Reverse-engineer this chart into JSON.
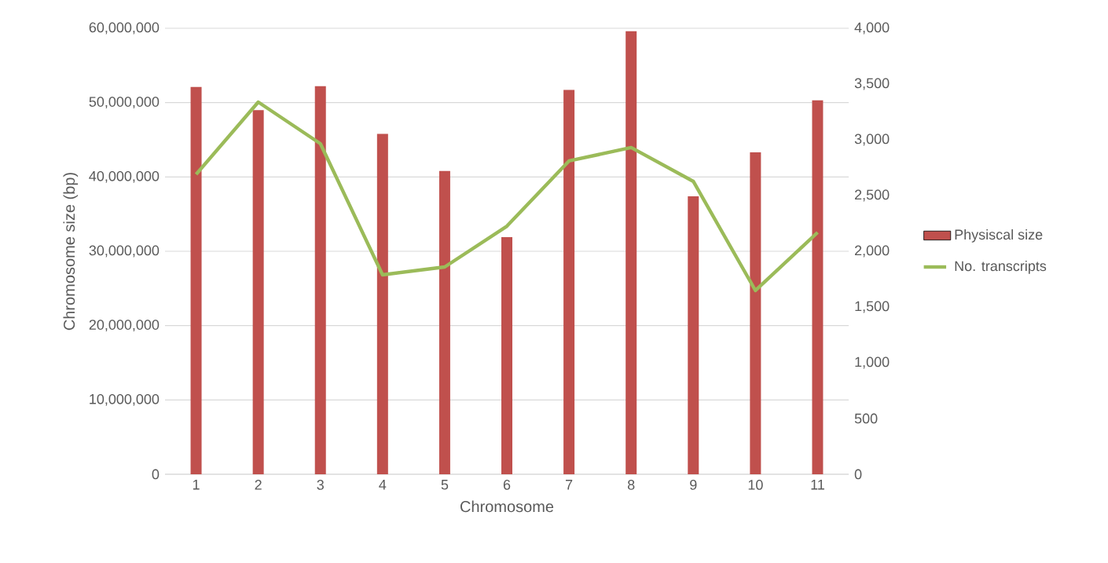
{
  "chart_data": {
    "type": "bar",
    "xlabel": "Chromosome",
    "ylabel": "Chromosome size (bp)",
    "categories": [
      "1",
      "2",
      "3",
      "4",
      "5",
      "6",
      "7",
      "8",
      "9",
      "10",
      "11"
    ],
    "series": [
      {
        "name": "Physiscal size",
        "color": "#c0504d",
        "values": [
          52100000,
          49000000,
          52200000,
          45800000,
          40800000,
          31900000,
          51700000,
          59600000,
          37400000,
          43300000,
          50300000
        ]
      },
      {
        "name": "No. transcripts",
        "type": "line",
        "axis": "y2",
        "color": "#9bbb59",
        "values": [
          2690,
          3338,
          2965,
          1789,
          1859,
          2225,
          2810,
          2930,
          2627,
          1648,
          2169
        ]
      }
    ],
    "ylim": [
      0,
      60000000
    ],
    "yticks": [
      0,
      {
        "value": 10000000,
        "label": "10,000,000"
      },
      {
        "value": 20000000,
        "label": "20,000,000"
      },
      {
        "value": 30000000,
        "label": "30,000,000"
      },
      {
        "value": 40000000,
        "label": "40,000,000"
      },
      {
        "value": 50000000,
        "label": "50,000,000"
      },
      {
        "value": 60000000,
        "label": "60,000,000"
      }
    ],
    "y2lim": [
      0,
      4000
    ],
    "y2ticks": [
      0,
      500,
      {
        "value": 1000,
        "label": "1,000"
      },
      {
        "value": 1500,
        "label": "1,500"
      },
      {
        "value": 2000,
        "label": "2,000"
      },
      {
        "value": 2500,
        "label": "2,500"
      },
      {
        "value": 3000,
        "label": "3,000"
      },
      {
        "value": 3500,
        "label": "3,500"
      },
      {
        "value": 4000,
        "label": "4,000"
      }
    ],
    "grid": "y",
    "legend": "right",
    "marker": "none",
    "line_style": "solid"
  }
}
